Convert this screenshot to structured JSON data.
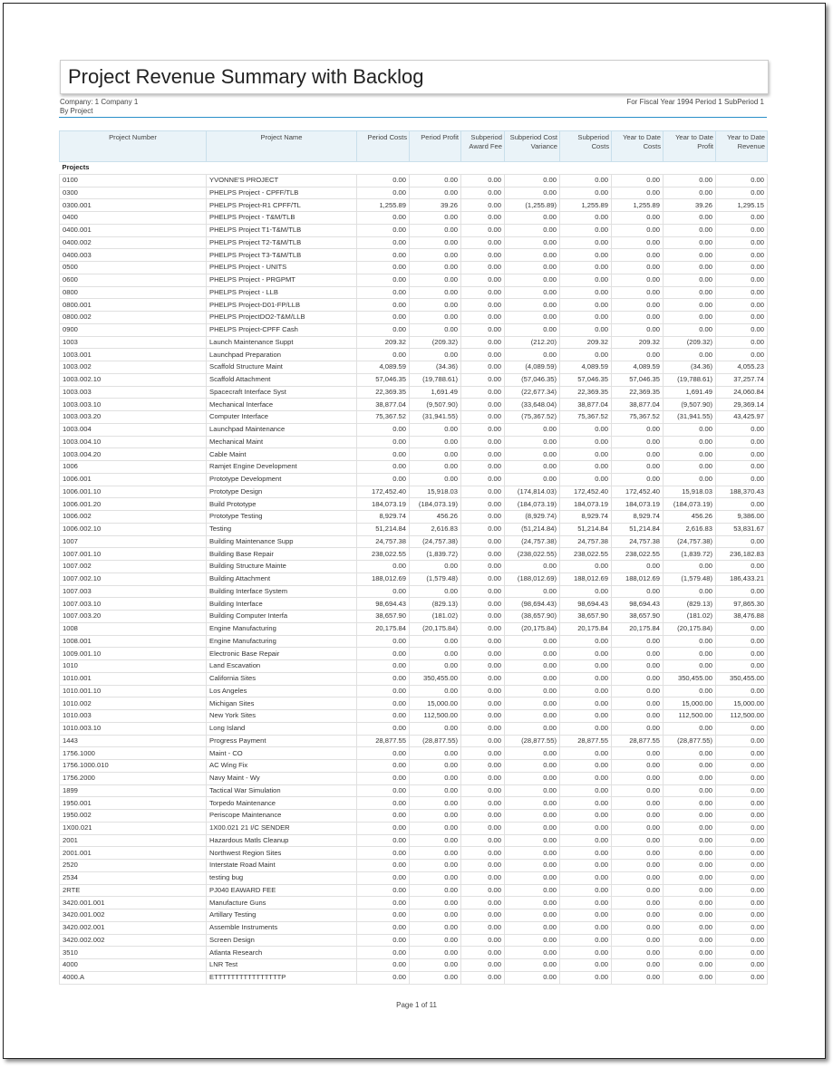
{
  "report": {
    "title": "Project Revenue Summary with Backlog",
    "company": "Company:  1   Company 1",
    "grouping": "By Project",
    "period": "For Fiscal Year 1994 Period 1 SubPeriod 1",
    "page": "Page 1 of 11"
  },
  "table": {
    "columns": [
      "Project Number",
      "Project Name",
      "Period Costs",
      "Period Profit",
      "Subperiod Award Fee",
      "Subperiod Cost Variance",
      "Subperiod Costs",
      "Year to Date Costs",
      "Year to Date Profit",
      "Year to Date Revenue"
    ],
    "group_label": "Projects",
    "rows": [
      [
        "0100",
        "YVONNE'S PROJECT",
        "0.00",
        "0.00",
        "0.00",
        "0.00",
        "0.00",
        "0.00",
        "0.00",
        "0.00"
      ],
      [
        "0300",
        "PHELPS Project - CPFF/TLB",
        "0.00",
        "0.00",
        "0.00",
        "0.00",
        "0.00",
        "0.00",
        "0.00",
        "0.00"
      ],
      [
        "0300.001",
        "PHELPS Project-R1 CPFF/TL",
        "1,255.89",
        "39.26",
        "0.00",
        "(1,255.89)",
        "1,255.89",
        "1,255.89",
        "39.26",
        "1,295.15"
      ],
      [
        "0400",
        "PHELPS Project - T&M/TLB",
        "0.00",
        "0.00",
        "0.00",
        "0.00",
        "0.00",
        "0.00",
        "0.00",
        "0.00"
      ],
      [
        "0400.001",
        "PHELPS Project T1-T&M/TLB",
        "0.00",
        "0.00",
        "0.00",
        "0.00",
        "0.00",
        "0.00",
        "0.00",
        "0.00"
      ],
      [
        "0400.002",
        "PHELPS Project T2-T&M/TLB",
        "0.00",
        "0.00",
        "0.00",
        "0.00",
        "0.00",
        "0.00",
        "0.00",
        "0.00"
      ],
      [
        "0400.003",
        "PHELPS Project T3-T&M/TLB",
        "0.00",
        "0.00",
        "0.00",
        "0.00",
        "0.00",
        "0.00",
        "0.00",
        "0.00"
      ],
      [
        "0500",
        "PHELPS Project - UNITS",
        "0.00",
        "0.00",
        "0.00",
        "0.00",
        "0.00",
        "0.00",
        "0.00",
        "0.00"
      ],
      [
        "0600",
        "PHELPS Project - PRGPMT",
        "0.00",
        "0.00",
        "0.00",
        "0.00",
        "0.00",
        "0.00",
        "0.00",
        "0.00"
      ],
      [
        "0800",
        "PHELPS Project - LLB",
        "0.00",
        "0.00",
        "0.00",
        "0.00",
        "0.00",
        "0.00",
        "0.00",
        "0.00"
      ],
      [
        "0800.001",
        "PHELPS Project-D01-FP/LLB",
        "0.00",
        "0.00",
        "0.00",
        "0.00",
        "0.00",
        "0.00",
        "0.00",
        "0.00"
      ],
      [
        "0800.002",
        "PHELPS ProjectDO2-T&M/LLB",
        "0.00",
        "0.00",
        "0.00",
        "0.00",
        "0.00",
        "0.00",
        "0.00",
        "0.00"
      ],
      [
        "0900",
        "PHELPS Project-CPFF Cash",
        "0.00",
        "0.00",
        "0.00",
        "0.00",
        "0.00",
        "0.00",
        "0.00",
        "0.00"
      ],
      [
        "1003",
        "Launch Maintenance Suppt",
        "209.32",
        "(209.32)",
        "0.00",
        "(212.20)",
        "209.32",
        "209.32",
        "(209.32)",
        "0.00"
      ],
      [
        "1003.001",
        "Launchpad Preparation",
        "0.00",
        "0.00",
        "0.00",
        "0.00",
        "0.00",
        "0.00",
        "0.00",
        "0.00"
      ],
      [
        "1003.002",
        "Scaffold Structure Maint",
        "4,089.59",
        "(34.36)",
        "0.00",
        "(4,089.59)",
        "4,089.59",
        "4,089.59",
        "(34.36)",
        "4,055.23"
      ],
      [
        "1003.002.10",
        "Scaffold Attachment",
        "57,046.35",
        "(19,788.61)",
        "0.00",
        "(57,046.35)",
        "57,046.35",
        "57,046.35",
        "(19,788.61)",
        "37,257.74"
      ],
      [
        "1003.003",
        "Spacecraft Interface Syst",
        "22,369.35",
        "1,691.49",
        "0.00",
        "(22,677.34)",
        "22,369.35",
        "22,369.35",
        "1,691.49",
        "24,060.84"
      ],
      [
        "1003.003.10",
        "Mechanical Interface",
        "38,877.04",
        "(9,507.90)",
        "0.00",
        "(33,648.04)",
        "38,877.04",
        "38,877.04",
        "(9,507.90)",
        "29,369.14"
      ],
      [
        "1003.003.20",
        "Computer Interface",
        "75,367.52",
        "(31,941.55)",
        "0.00",
        "(75,367.52)",
        "75,367.52",
        "75,367.52",
        "(31,941.55)",
        "43,425.97"
      ],
      [
        "1003.004",
        "Launchpad Maintenance",
        "0.00",
        "0.00",
        "0.00",
        "0.00",
        "0.00",
        "0.00",
        "0.00",
        "0.00"
      ],
      [
        "1003.004.10",
        "Mechanical Maint",
        "0.00",
        "0.00",
        "0.00",
        "0.00",
        "0.00",
        "0.00",
        "0.00",
        "0.00"
      ],
      [
        "1003.004.20",
        "Cable Maint",
        "0.00",
        "0.00",
        "0.00",
        "0.00",
        "0.00",
        "0.00",
        "0.00",
        "0.00"
      ],
      [
        "1006",
        "Ramjet Engine Development",
        "0.00",
        "0.00",
        "0.00",
        "0.00",
        "0.00",
        "0.00",
        "0.00",
        "0.00"
      ],
      [
        "1006.001",
        "Prototype Development",
        "0.00",
        "0.00",
        "0.00",
        "0.00",
        "0.00",
        "0.00",
        "0.00",
        "0.00"
      ],
      [
        "1006.001.10",
        "Prototype Design",
        "172,452.40",
        "15,918.03",
        "0.00",
        "(174,814.03)",
        "172,452.40",
        "172,452.40",
        "15,918.03",
        "188,370.43"
      ],
      [
        "1006.001.20",
        "Build Prototype",
        "184,073.19",
        "(184,073.19)",
        "0.00",
        "(184,073.19)",
        "184,073.19",
        "184,073.19",
        "(184,073.19)",
        "0.00"
      ],
      [
        "1006.002",
        "Prototype Testing",
        "8,929.74",
        "456.26",
        "0.00",
        "(8,929.74)",
        "8,929.74",
        "8,929.74",
        "456.26",
        "9,386.00"
      ],
      [
        "1006.002.10",
        "Testing",
        "51,214.84",
        "2,616.83",
        "0.00",
        "(51,214.84)",
        "51,214.84",
        "51,214.84",
        "2,616.83",
        "53,831.67"
      ],
      [
        "1007",
        "Building Maintenance Supp",
        "24,757.38",
        "(24,757.38)",
        "0.00",
        "(24,757.38)",
        "24,757.38",
        "24,757.38",
        "(24,757.38)",
        "0.00"
      ],
      [
        "1007.001.10",
        "Building Base Repair",
        "238,022.55",
        "(1,839.72)",
        "0.00",
        "(238,022.55)",
        "238,022.55",
        "238,022.55",
        "(1,839.72)",
        "236,182.83"
      ],
      [
        "1007.002",
        "Building Structure Mainte",
        "0.00",
        "0.00",
        "0.00",
        "0.00",
        "0.00",
        "0.00",
        "0.00",
        "0.00"
      ],
      [
        "1007.002.10",
        "Building Attachment",
        "188,012.69",
        "(1,579.48)",
        "0.00",
        "(188,012.69)",
        "188,012.69",
        "188,012.69",
        "(1,579.48)",
        "186,433.21"
      ],
      [
        "1007.003",
        "Building Interface System",
        "0.00",
        "0.00",
        "0.00",
        "0.00",
        "0.00",
        "0.00",
        "0.00",
        "0.00"
      ],
      [
        "1007.003.10",
        "Building Interface",
        "98,694.43",
        "(829.13)",
        "0.00",
        "(98,694.43)",
        "98,694.43",
        "98,694.43",
        "(829.13)",
        "97,865.30"
      ],
      [
        "1007.003.20",
        "Building Computer Interfa",
        "38,657.90",
        "(181.02)",
        "0.00",
        "(38,657.90)",
        "38,657.90",
        "38,657.90",
        "(181.02)",
        "38,476.88"
      ],
      [
        "1008",
        "Engine Manufacturing",
        "20,175.84",
        "(20,175.84)",
        "0.00",
        "(20,175.84)",
        "20,175.84",
        "20,175.84",
        "(20,175.84)",
        "0.00"
      ],
      [
        "1008.001",
        "Engine Manufacturing",
        "0.00",
        "0.00",
        "0.00",
        "0.00",
        "0.00",
        "0.00",
        "0.00",
        "0.00"
      ],
      [
        "1009.001.10",
        "Electronic Base Repair",
        "0.00",
        "0.00",
        "0.00",
        "0.00",
        "0.00",
        "0.00",
        "0.00",
        "0.00"
      ],
      [
        "1010",
        "Land Escavation",
        "0.00",
        "0.00",
        "0.00",
        "0.00",
        "0.00",
        "0.00",
        "0.00",
        "0.00"
      ],
      [
        "1010.001",
        "California Sites",
        "0.00",
        "350,455.00",
        "0.00",
        "0.00",
        "0.00",
        "0.00",
        "350,455.00",
        "350,455.00"
      ],
      [
        "1010.001.10",
        "Los Angeles",
        "0.00",
        "0.00",
        "0.00",
        "0.00",
        "0.00",
        "0.00",
        "0.00",
        "0.00"
      ],
      [
        "1010.002",
        "Michigan Sites",
        "0.00",
        "15,000.00",
        "0.00",
        "0.00",
        "0.00",
        "0.00",
        "15,000.00",
        "15,000.00"
      ],
      [
        "1010.003",
        "New York Sites",
        "0.00",
        "112,500.00",
        "0.00",
        "0.00",
        "0.00",
        "0.00",
        "112,500.00",
        "112,500.00"
      ],
      [
        "1010.003.10",
        "Long Island",
        "0.00",
        "0.00",
        "0.00",
        "0.00",
        "0.00",
        "0.00",
        "0.00",
        "0.00"
      ],
      [
        "1443",
        "Progress Payment",
        "28,877.55",
        "(28,877.55)",
        "0.00",
        "(28,877.55)",
        "28,877.55",
        "28,877.55",
        "(28,877.55)",
        "0.00"
      ],
      [
        "1756.1000",
        "Maint - CO",
        "0.00",
        "0.00",
        "0.00",
        "0.00",
        "0.00",
        "0.00",
        "0.00",
        "0.00"
      ],
      [
        "1756.1000.010",
        "AC Wing Fix",
        "0.00",
        "0.00",
        "0.00",
        "0.00",
        "0.00",
        "0.00",
        "0.00",
        "0.00"
      ],
      [
        "1756.2000",
        "Navy Maint - Wy",
        "0.00",
        "0.00",
        "0.00",
        "0.00",
        "0.00",
        "0.00",
        "0.00",
        "0.00"
      ],
      [
        "1899",
        "Tactical War Simulation",
        "0.00",
        "0.00",
        "0.00",
        "0.00",
        "0.00",
        "0.00",
        "0.00",
        "0.00"
      ],
      [
        "1950.001",
        "Torpedo Maintenance",
        "0.00",
        "0.00",
        "0.00",
        "0.00",
        "0.00",
        "0.00",
        "0.00",
        "0.00"
      ],
      [
        "1950.002",
        "Periscope Maintenance",
        "0.00",
        "0.00",
        "0.00",
        "0.00",
        "0.00",
        "0.00",
        "0.00",
        "0.00"
      ],
      [
        "1X00.021",
        "1X00.021 21 I/C SENDER",
        "0.00",
        "0.00",
        "0.00",
        "0.00",
        "0.00",
        "0.00",
        "0.00",
        "0.00"
      ],
      [
        "2001",
        "Hazardous Matls Cleanup",
        "0.00",
        "0.00",
        "0.00",
        "0.00",
        "0.00",
        "0.00",
        "0.00",
        "0.00"
      ],
      [
        "2001.001",
        "Northwest Region Sites",
        "0.00",
        "0.00",
        "0.00",
        "0.00",
        "0.00",
        "0.00",
        "0.00",
        "0.00"
      ],
      [
        "2520",
        "Interstate Road Maint",
        "0.00",
        "0.00",
        "0.00",
        "0.00",
        "0.00",
        "0.00",
        "0.00",
        "0.00"
      ],
      [
        "2534",
        "testing bug",
        "0.00",
        "0.00",
        "0.00",
        "0.00",
        "0.00",
        "0.00",
        "0.00",
        "0.00"
      ],
      [
        "2RTE",
        "PJ040 EAWARD FEE",
        "0.00",
        "0.00",
        "0.00",
        "0.00",
        "0.00",
        "0.00",
        "0.00",
        "0.00"
      ],
      [
        "3420.001.001",
        "Manufacture Guns",
        "0.00",
        "0.00",
        "0.00",
        "0.00",
        "0.00",
        "0.00",
        "0.00",
        "0.00"
      ],
      [
        "3420.001.002",
        "Artillary Testing",
        "0.00",
        "0.00",
        "0.00",
        "0.00",
        "0.00",
        "0.00",
        "0.00",
        "0.00"
      ],
      [
        "3420.002.001",
        "Assemble Instruments",
        "0.00",
        "0.00",
        "0.00",
        "0.00",
        "0.00",
        "0.00",
        "0.00",
        "0.00"
      ],
      [
        "3420.002.002",
        "Screen Design",
        "0.00",
        "0.00",
        "0.00",
        "0.00",
        "0.00",
        "0.00",
        "0.00",
        "0.00"
      ],
      [
        "3510",
        "Atlanta Research",
        "0.00",
        "0.00",
        "0.00",
        "0.00",
        "0.00",
        "0.00",
        "0.00",
        "0.00"
      ],
      [
        "4000",
        "LNR Test",
        "0.00",
        "0.00",
        "0.00",
        "0.00",
        "0.00",
        "0.00",
        "0.00",
        "0.00"
      ],
      [
        "4000.A",
        "ETTTTTTTTTTTTTTTTP",
        "0.00",
        "0.00",
        "0.00",
        "0.00",
        "0.00",
        "0.00",
        "0.00",
        "0.00"
      ]
    ]
  }
}
